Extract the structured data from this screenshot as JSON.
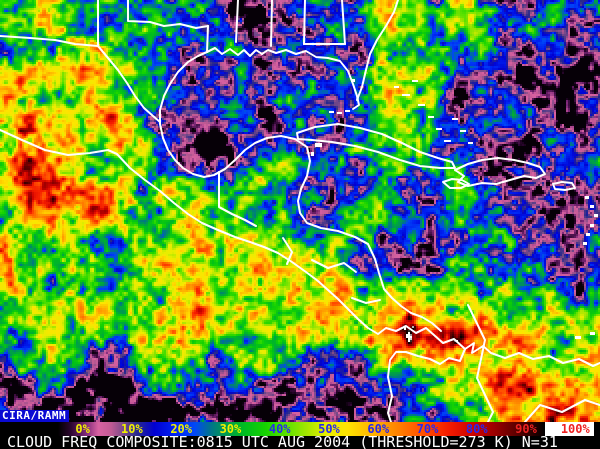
{
  "branding": {
    "label": "CIRA/RAMM",
    "bg": "#0a0ad2",
    "fg": "#ffffff"
  },
  "caption": {
    "text": "CLOUD FREQ COMPOSITE:0815 UTC AUG 2004 (THRESHOLD=273 K) N=31",
    "fg": "#ffffff",
    "bg": "#000000"
  },
  "colorbar": {
    "labels": [
      {
        "text": "0%",
        "color": "#f0f000"
      },
      {
        "text": "10%",
        "color": "#f0f000"
      },
      {
        "text": "20%",
        "color": "#f0f000"
      },
      {
        "text": "30%",
        "color": "#f0f000"
      },
      {
        "text": "40%",
        "color": "#2828ee"
      },
      {
        "text": "50%",
        "color": "#2828ee"
      },
      {
        "text": "60%",
        "color": "#2828ee"
      },
      {
        "text": "70%",
        "color": "#2828ee"
      },
      {
        "text": "80%",
        "color": "#2828ee"
      },
      {
        "text": "90%",
        "color": "#ee2222"
      },
      {
        "text": "100%",
        "color": "#ee2222"
      }
    ],
    "white_box_color": "#ffffff",
    "stops": [
      {
        "t": 0.0,
        "c": "#000000"
      },
      {
        "t": 0.025,
        "c": "#2c0630"
      },
      {
        "t": 0.055,
        "c": "#7c2878"
      },
      {
        "t": 0.08,
        "c": "#d862a2"
      },
      {
        "t": 0.105,
        "c": "#c05a94"
      },
      {
        "t": 0.13,
        "c": "#784a88"
      },
      {
        "t": 0.155,
        "c": "#2a2a8c"
      },
      {
        "t": 0.19,
        "c": "#0000d2"
      },
      {
        "t": 0.23,
        "c": "#0022f2"
      },
      {
        "t": 0.27,
        "c": "#0048f8"
      },
      {
        "t": 0.3,
        "c": "#00748c"
      },
      {
        "t": 0.33,
        "c": "#009a50"
      },
      {
        "t": 0.37,
        "c": "#00be1e"
      },
      {
        "t": 0.41,
        "c": "#16d400"
      },
      {
        "t": 0.45,
        "c": "#5ce200"
      },
      {
        "t": 0.49,
        "c": "#a2e600"
      },
      {
        "t": 0.53,
        "c": "#e8ee00"
      },
      {
        "t": 0.57,
        "c": "#ffe400"
      },
      {
        "t": 0.62,
        "c": "#ffb400"
      },
      {
        "t": 0.67,
        "c": "#ff8200"
      },
      {
        "t": 0.72,
        "c": "#ff4e00"
      },
      {
        "t": 0.77,
        "c": "#f51c00"
      },
      {
        "t": 0.82,
        "c": "#cc0200"
      },
      {
        "t": 0.86,
        "c": "#9c0000"
      },
      {
        "t": 0.9,
        "c": "#600000"
      },
      {
        "t": 0.935,
        "c": "#2a0000"
      },
      {
        "t": 0.96,
        "c": "#000000"
      },
      {
        "t": 0.975,
        "c": "#ffffff"
      },
      {
        "t": 1.0,
        "c": "#ffffff"
      }
    ]
  },
  "map": {
    "border_color": "#ffffff",
    "regions": [
      {
        "name": "nw-mexico-sierra-madre",
        "approx_freq_pct": 70
      },
      {
        "name": "gulf-of-mexico",
        "approx_freq_pct": 10
      },
      {
        "name": "southeast-us",
        "approx_freq_pct": 20
      },
      {
        "name": "subtropical-atlantic",
        "approx_freq_pct": 12
      },
      {
        "name": "caribbean-sea",
        "approx_freq_pct": 22
      },
      {
        "name": "central-america-itcz-band",
        "approx_freq_pct": 55
      },
      {
        "name": "costa-rica-panama-convection",
        "approx_freq_pct": 85
      },
      {
        "name": "eastern-pacific-clear-zone",
        "approx_freq_pct": 10
      },
      {
        "name": "northern-south-america",
        "approx_freq_pct": 60
      }
    ]
  }
}
